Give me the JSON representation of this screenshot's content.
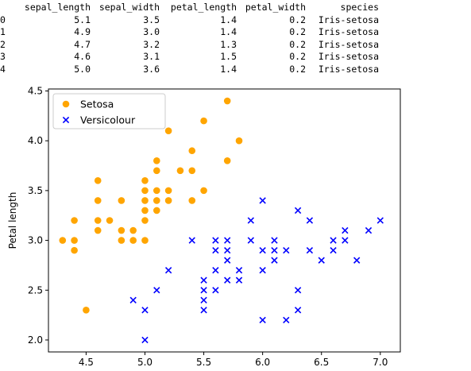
{
  "table": {
    "columns": [
      "",
      "sepal_length",
      "sepal_width",
      "petal_length",
      "petal_width",
      "species"
    ],
    "rows": [
      [
        "0",
        "5.1",
        "3.5",
        "1.4",
        "0.2",
        "Iris-setosa"
      ],
      [
        "1",
        "4.9",
        "3.0",
        "1.4",
        "0.2",
        "Iris-setosa"
      ],
      [
        "2",
        "4.7",
        "3.2",
        "1.3",
        "0.2",
        "Iris-setosa"
      ],
      [
        "3",
        "4.6",
        "3.1",
        "1.5",
        "0.2",
        "Iris-setosa"
      ],
      [
        "4",
        "5.0",
        "3.6",
        "1.4",
        "0.2",
        "Iris-setosa"
      ]
    ]
  },
  "chart_data": {
    "type": "scatter",
    "title": "",
    "xlabel": "",
    "ylabel": "Petal length",
    "xlim": [
      4.18,
      7.17
    ],
    "ylim": [
      1.88,
      4.52
    ],
    "xticks": [
      "4.5",
      "5.0",
      "5.5",
      "6.0",
      "6.5",
      "7.0"
    ],
    "yticks": [
      "2.0",
      "2.5",
      "3.0",
      "3.5",
      "4.0",
      "4.5"
    ],
    "grid": false,
    "legend_position": "top-left",
    "series": [
      {
        "name": "Setosa",
        "marker": "circle",
        "color": "#FFA500",
        "points": [
          [
            4.3,
            3.0
          ],
          [
            4.4,
            2.9
          ],
          [
            4.4,
            3.0
          ],
          [
            4.4,
            3.2
          ],
          [
            4.5,
            2.3
          ],
          [
            4.6,
            3.1
          ],
          [
            4.6,
            3.2
          ],
          [
            4.6,
            3.4
          ],
          [
            4.6,
            3.6
          ],
          [
            4.7,
            3.2
          ],
          [
            4.8,
            3.0
          ],
          [
            4.8,
            3.1
          ],
          [
            4.8,
            3.4
          ],
          [
            4.9,
            3.0
          ],
          [
            4.9,
            3.1
          ],
          [
            5.0,
            3.0
          ],
          [
            5.0,
            3.2
          ],
          [
            5.0,
            3.3
          ],
          [
            5.0,
            3.4
          ],
          [
            5.0,
            3.5
          ],
          [
            5.0,
            3.6
          ],
          [
            5.1,
            3.3
          ],
          [
            5.1,
            3.4
          ],
          [
            5.1,
            3.5
          ],
          [
            5.1,
            3.7
          ],
          [
            5.1,
            3.8
          ],
          [
            5.2,
            3.4
          ],
          [
            5.2,
            3.5
          ],
          [
            5.2,
            4.1
          ],
          [
            5.3,
            3.7
          ],
          [
            5.4,
            3.4
          ],
          [
            5.4,
            3.7
          ],
          [
            5.4,
            3.9
          ],
          [
            5.5,
            3.5
          ],
          [
            5.5,
            4.2
          ],
          [
            5.7,
            3.8
          ],
          [
            5.7,
            4.4
          ],
          [
            5.8,
            4.0
          ]
        ]
      },
      {
        "name": "Versicolour",
        "marker": "x",
        "color": "#0000FF",
        "points": [
          [
            4.9,
            2.4
          ],
          [
            5.0,
            2.0
          ],
          [
            5.0,
            2.3
          ],
          [
            5.1,
            2.5
          ],
          [
            5.2,
            2.7
          ],
          [
            5.4,
            3.0
          ],
          [
            5.5,
            2.3
          ],
          [
            5.5,
            2.4
          ],
          [
            5.5,
            2.5
          ],
          [
            5.5,
            2.6
          ],
          [
            5.6,
            2.5
          ],
          [
            5.6,
            2.7
          ],
          [
            5.6,
            2.9
          ],
          [
            5.6,
            3.0
          ],
          [
            5.7,
            2.6
          ],
          [
            5.7,
            2.8
          ],
          [
            5.7,
            2.9
          ],
          [
            5.7,
            3.0
          ],
          [
            5.8,
            2.6
          ],
          [
            5.8,
            2.7
          ],
          [
            5.9,
            3.0
          ],
          [
            5.9,
            3.2
          ],
          [
            6.0,
            2.2
          ],
          [
            6.0,
            2.7
          ],
          [
            6.0,
            2.9
          ],
          [
            6.0,
            3.4
          ],
          [
            6.1,
            2.8
          ],
          [
            6.1,
            2.9
          ],
          [
            6.1,
            3.0
          ],
          [
            6.2,
            2.2
          ],
          [
            6.2,
            2.9
          ],
          [
            6.3,
            2.3
          ],
          [
            6.3,
            2.5
          ],
          [
            6.3,
            3.3
          ],
          [
            6.4,
            2.9
          ],
          [
            6.4,
            3.2
          ],
          [
            6.5,
            2.8
          ],
          [
            6.6,
            2.9
          ],
          [
            6.6,
            3.0
          ],
          [
            6.7,
            3.0
          ],
          [
            6.7,
            3.1
          ],
          [
            6.8,
            2.8
          ],
          [
            6.9,
            3.1
          ],
          [
            7.0,
            3.2
          ]
        ]
      }
    ]
  }
}
